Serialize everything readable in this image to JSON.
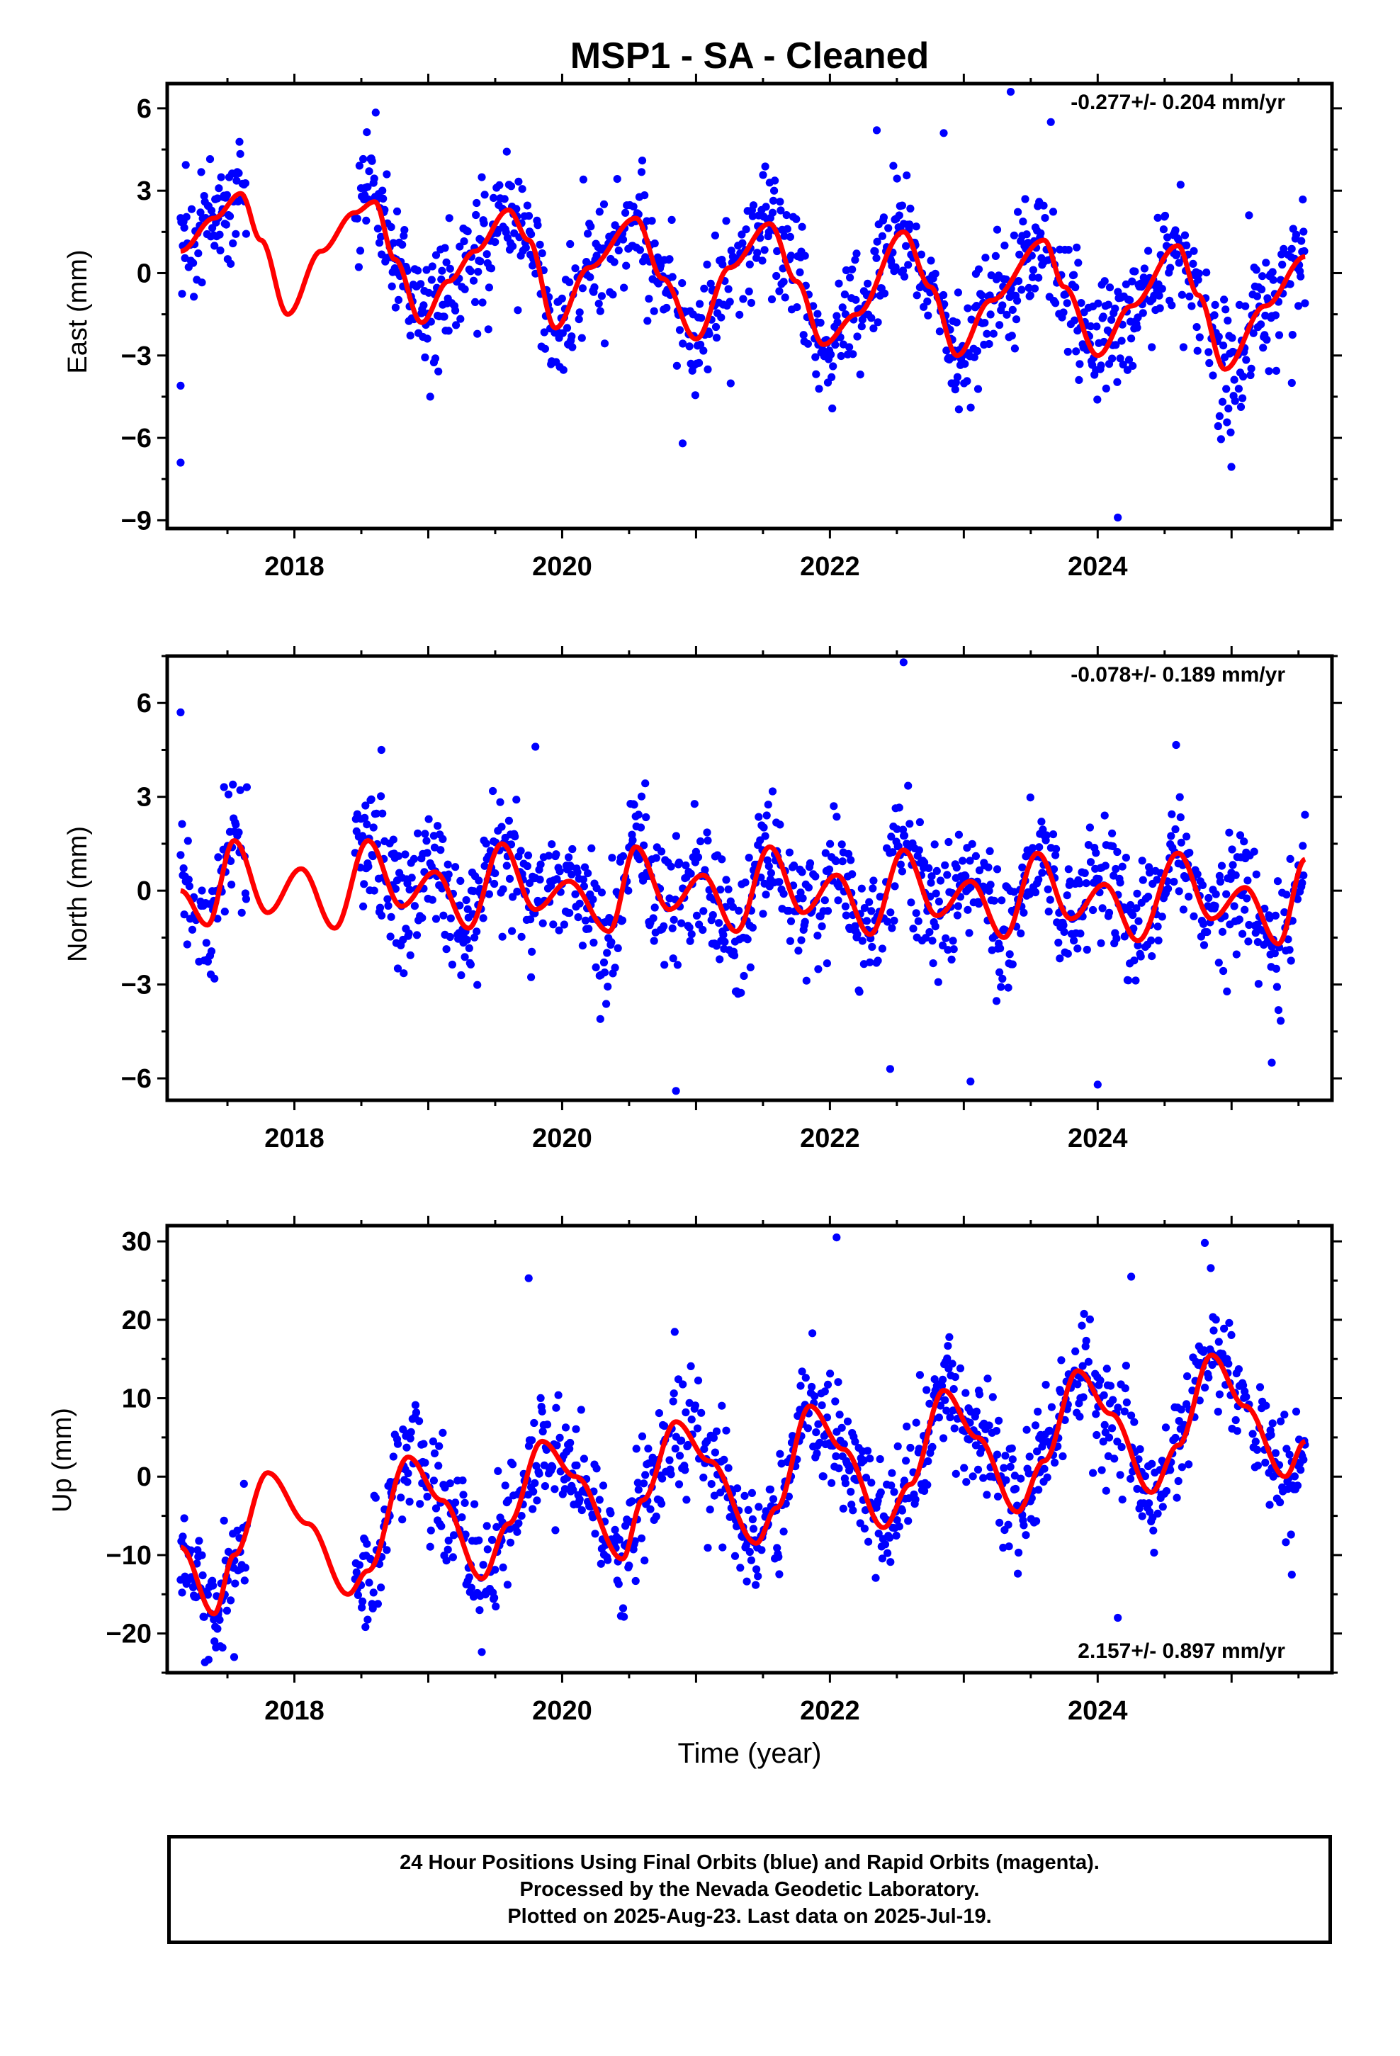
{
  "figure": {
    "title": "MSP1  - SA - Cleaned",
    "xlabel": "Time (year)",
    "footer_lines": [
      "24 Hour Positions Using Final Orbits (blue) and Rapid Orbits (magenta).",
      "Processed by the Nevada Geodetic Laboratory.",
      "Plotted on 2025-Aug-23. Last data on 2025-Jul-19."
    ],
    "colors": {
      "points": "#0000ff",
      "fit": "#ff0000",
      "axes": "#000000"
    }
  },
  "chart_data": [
    {
      "type": "scatter",
      "name": "east",
      "ylabel": "East (mm)",
      "rate_label": "-0.277+/- 0.204 mm/yr",
      "rate_position": "top-right",
      "xlim": [
        2017.05,
        2025.75
      ],
      "ylim": [
        -9.3,
        6.9
      ],
      "xticks": [
        2018,
        2020,
        2022,
        2024
      ],
      "yticks": [
        -9,
        -6,
        -3,
        0,
        3,
        6
      ],
      "grid": false,
      "data_span": [
        2017.15,
        2025.55
      ],
      "gap": [
        2017.65,
        2018.45
      ],
      "scatter_sd": 1.1,
      "fit_curve": {
        "x": [
          2017.15,
          2017.4,
          2017.6,
          2017.75,
          2017.95,
          2018.2,
          2018.45,
          2018.6,
          2018.75,
          2018.95,
          2019.15,
          2019.35,
          2019.6,
          2019.75,
          2019.95,
          2020.2,
          2020.55,
          2020.75,
          2021.0,
          2021.25,
          2021.55,
          2021.75,
          2021.95,
          2022.2,
          2022.55,
          2022.75,
          2022.95,
          2023.2,
          2023.6,
          2023.75,
          2024.0,
          2024.25,
          2024.6,
          2024.75,
          2024.95,
          2025.25,
          2025.55
        ],
        "y": [
          0.8,
          2.0,
          2.9,
          1.2,
          -1.5,
          0.8,
          2.2,
          2.6,
          0.5,
          -1.8,
          -0.3,
          0.8,
          2.3,
          1.2,
          -2.0,
          0.2,
          2.0,
          -0.2,
          -2.4,
          0.2,
          1.8,
          -0.3,
          -2.6,
          -1.5,
          1.5,
          -0.5,
          -3.0,
          -1.0,
          1.2,
          -0.5,
          -3.0,
          -1.2,
          1.0,
          -0.8,
          -3.5,
          -1.2,
          0.6
        ]
      },
      "outliers": [
        [
          2017.15,
          -6.9
        ],
        [
          2017.15,
          -4.1
        ],
        [
          2023.35,
          6.6
        ],
        [
          2023.65,
          5.5
        ],
        [
          2024.15,
          -8.9
        ],
        [
          2022.35,
          5.2
        ],
        [
          2022.85,
          5.1
        ],
        [
          2020.9,
          -6.2
        ],
        [
          2025.45,
          -4.0
        ]
      ]
    },
    {
      "type": "scatter",
      "name": "north",
      "ylabel": "North (mm)",
      "rate_label": "-0.078+/- 0.189 mm/yr",
      "rate_position": "top-right",
      "xlim": [
        2017.05,
        2025.75
      ],
      "ylim": [
        -6.7,
        7.5
      ],
      "xticks": [
        2018,
        2020,
        2022,
        2024
      ],
      "yticks": [
        -6,
        -3,
        0,
        3,
        6
      ],
      "grid": false,
      "data_span": [
        2017.15,
        2025.55
      ],
      "gap": [
        2017.65,
        2018.45
      ],
      "scatter_sd": 1.0,
      "fit_curve": {
        "x": [
          2017.15,
          2017.35,
          2017.55,
          2017.8,
          2018.05,
          2018.3,
          2018.55,
          2018.8,
          2019.05,
          2019.3,
          2019.55,
          2019.8,
          2020.05,
          2020.35,
          2020.55,
          2020.8,
          2021.05,
          2021.3,
          2021.55,
          2021.8,
          2022.05,
          2022.3,
          2022.55,
          2022.8,
          2023.05,
          2023.3,
          2023.55,
          2023.8,
          2024.05,
          2024.3,
          2024.6,
          2024.85,
          2025.1,
          2025.35,
          2025.55
        ],
        "y": [
          0.0,
          -1.1,
          1.6,
          -0.7,
          0.7,
          -1.2,
          1.6,
          -0.5,
          0.6,
          -1.2,
          1.5,
          -0.6,
          0.3,
          -1.3,
          1.4,
          -0.6,
          0.5,
          -1.3,
          1.4,
          -0.7,
          0.5,
          -1.4,
          1.3,
          -0.8,
          0.3,
          -1.5,
          1.2,
          -0.9,
          0.2,
          -1.6,
          1.2,
          -0.9,
          0.1,
          -1.7,
          1.0
        ]
      },
      "outliers": [
        [
          2017.15,
          5.7
        ],
        [
          2022.55,
          7.3
        ],
        [
          2020.85,
          -6.4
        ],
        [
          2022.45,
          -5.7
        ],
        [
          2023.05,
          -6.1
        ],
        [
          2024.0,
          -6.2
        ],
        [
          2025.3,
          -5.5
        ],
        [
          2019.8,
          4.6
        ],
        [
          2018.65,
          4.5
        ]
      ]
    },
    {
      "type": "scatter",
      "name": "up",
      "ylabel": "Up (mm)",
      "rate_label": "2.157+/- 0.897 mm/yr",
      "rate_position": "bottom-right",
      "xlim": [
        2017.05,
        2025.75
      ],
      "ylim": [
        -25,
        32
      ],
      "xticks": [
        2018,
        2020,
        2022,
        2024
      ],
      "yticks": [
        -20,
        -10,
        0,
        10,
        20,
        30
      ],
      "grid": false,
      "data_span": [
        2017.15,
        2025.55
      ],
      "gap": [
        2017.65,
        2018.45
      ],
      "scatter_sd": 3.8,
      "fit_curve": {
        "x": [
          2017.15,
          2017.4,
          2017.55,
          2017.8,
          2018.1,
          2018.4,
          2018.55,
          2018.85,
          2019.1,
          2019.4,
          2019.6,
          2019.85,
          2020.1,
          2020.45,
          2020.6,
          2020.85,
          2021.1,
          2021.45,
          2021.6,
          2021.85,
          2022.1,
          2022.4,
          2022.6,
          2022.85,
          2023.1,
          2023.4,
          2023.6,
          2023.85,
          2024.1,
          2024.4,
          2024.6,
          2024.85,
          2025.1,
          2025.4,
          2025.55
        ],
        "y": [
          -9.0,
          -17.5,
          -10.0,
          0.5,
          -6.0,
          -15.0,
          -12.0,
          2.5,
          -3.0,
          -13.0,
          -6.0,
          4.5,
          0.0,
          -10.5,
          -3.0,
          7.0,
          2.0,
          -8.5,
          -4.0,
          9.0,
          3.5,
          -6.5,
          -1.0,
          11.0,
          5.0,
          -4.5,
          2.0,
          13.5,
          8.0,
          -2.0,
          4.0,
          15.5,
          9.0,
          0.0,
          4.5
        ]
      },
      "outliers": [
        [
          2022.05,
          30.5
        ],
        [
          2024.8,
          29.8
        ],
        [
          2019.75,
          25.3
        ],
        [
          2024.25,
          25.5
        ],
        [
          2024.15,
          -18.0
        ],
        [
          2025.45,
          -12.5
        ],
        [
          2017.55,
          -23.0
        ]
      ]
    }
  ]
}
